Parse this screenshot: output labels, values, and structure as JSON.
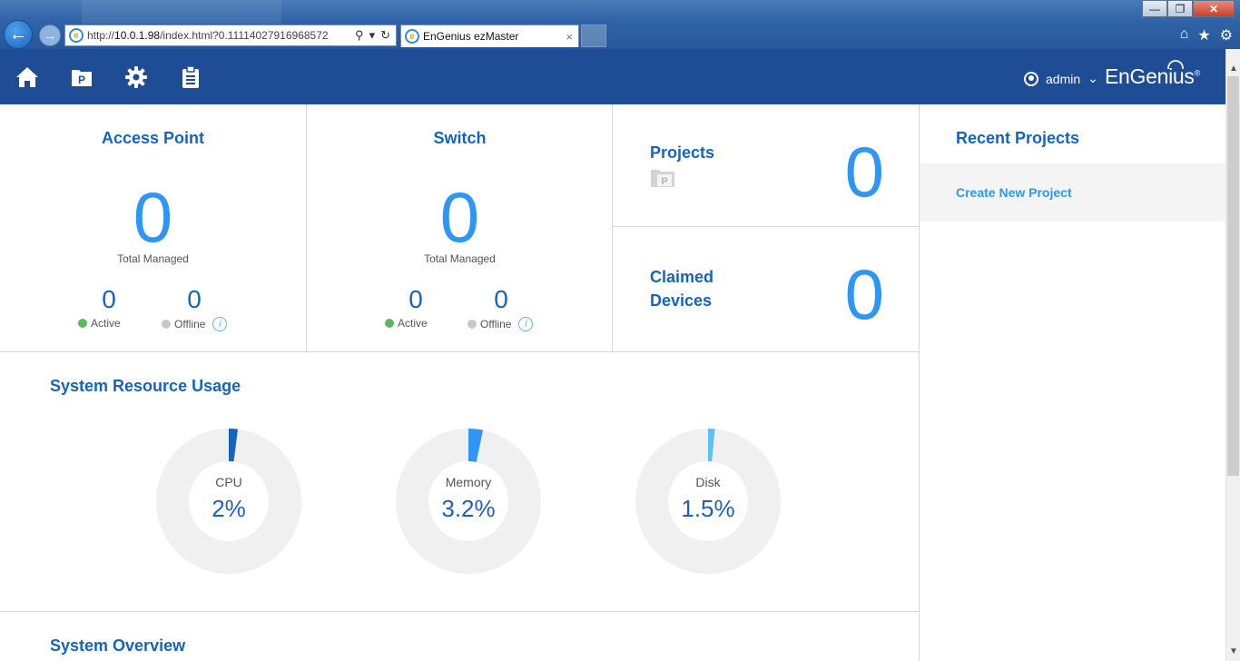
{
  "browser": {
    "url_prefix": "http://",
    "url_host": "10.0.1.98",
    "url_path": "/index.html?0.11114027916968572",
    "tab_title": "EnGenius ezMaster",
    "tab_close": "×",
    "ie_glyph": "e"
  },
  "header": {
    "user": "admin",
    "user_caret": "⌄",
    "brand": "EnGenius",
    "brand_mark": "®"
  },
  "cards": {
    "access_point": {
      "title": "Access Point",
      "total": "0",
      "total_label": "Total Managed",
      "active": "0",
      "active_label": "Active",
      "offline": "0",
      "offline_label": "Offline",
      "info_glyph": "i"
    },
    "switch": {
      "title": "Switch",
      "total": "0",
      "total_label": "Total Managed",
      "active": "0",
      "active_label": "Active",
      "offline": "0",
      "offline_label": "Offline",
      "info_glyph": "i"
    },
    "projects": {
      "title": "Projects",
      "count": "0",
      "icon_glyph": "P"
    },
    "claimed": {
      "title_line1": "Claimed",
      "title_line2": "Devices",
      "count": "0"
    }
  },
  "recent_projects": {
    "title": "Recent Projects",
    "create_label": "Create New Project"
  },
  "system_resource": {
    "title": "System Resource Usage",
    "items": [
      {
        "label": "CPU",
        "value_text": "2%",
        "value": 2,
        "color": "#1565c0"
      },
      {
        "label": "Memory",
        "value_text": "3.2%",
        "value": 3.2,
        "color": "#2f96f3"
      },
      {
        "label": "Disk",
        "value_text": "1.5%",
        "value": 1.5,
        "color": "#5bc0f8"
      }
    ],
    "track_color": "#f0f0f0"
  },
  "system_overview": {
    "title": "System Overview"
  },
  "colors": {
    "header_bg": "#1e4d96",
    "accent": "#1565c0",
    "number": "#2f96f3",
    "active": "#5cb85c",
    "offline": "#c8c8c8"
  },
  "icons": [
    "back-icon",
    "forward-icon",
    "home-icon",
    "projects-icon",
    "gear-icon",
    "clipboard-icon",
    "user-icon",
    "search-icon",
    "refresh-icon",
    "star-icon",
    "info-icon"
  ]
}
